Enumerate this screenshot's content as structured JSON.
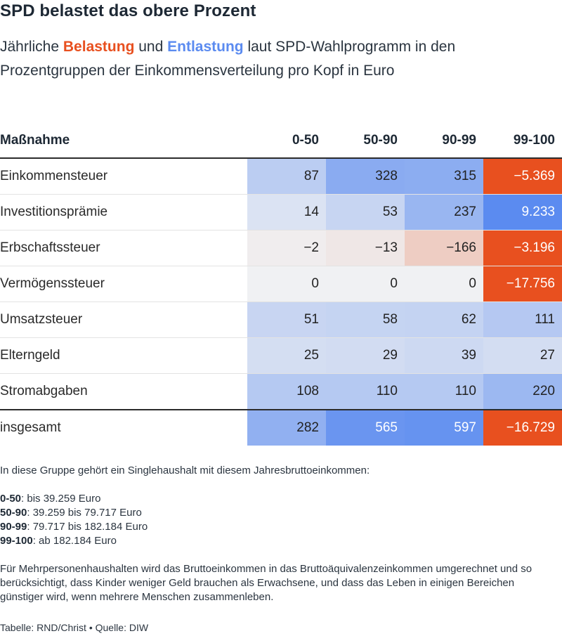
{
  "title": "SPD belastet das obere Prozent",
  "subtitle": {
    "pre": "Jährliche ",
    "belastung": "Belastung",
    "mid": " und ",
    "entlastung": "Entlastung",
    "post": " laut SPD-Wahlprogramm in den Prozentgruppen der Einkommensverteilung pro Kopf in Euro"
  },
  "colors": {
    "belastung": "#e8501f",
    "entlastung": "#5b8bf0"
  },
  "chart_data": {
    "type": "table",
    "title": "SPD belastet das obere Prozent",
    "columns": [
      "Maßnahme",
      "0-50",
      "50-90",
      "90-99",
      "99-100"
    ],
    "rows": [
      {
        "label": "Einkommensteuer",
        "values": [
          87,
          328,
          315,
          -5369
        ],
        "display": [
          "87",
          "328",
          "315",
          "−5.369"
        ]
      },
      {
        "label": "Investitionsprämie",
        "values": [
          14,
          53,
          237,
          9233
        ],
        "display": [
          "14",
          "53",
          "237",
          "9.233"
        ]
      },
      {
        "label": "Erbschaftssteuer",
        "values": [
          -2,
          -13,
          -166,
          -3196
        ],
        "display": [
          "−2",
          "−13",
          "−166",
          "−3.196"
        ]
      },
      {
        "label": "Vermögenssteuer",
        "values": [
          0,
          0,
          0,
          -17756
        ],
        "display": [
          "0",
          "0",
          "0",
          "−17.756"
        ]
      },
      {
        "label": "Umsatzsteuer",
        "values": [
          51,
          58,
          62,
          111
        ],
        "display": [
          "51",
          "58",
          "62",
          "111"
        ]
      },
      {
        "label": "Elterngeld",
        "values": [
          25,
          29,
          39,
          27
        ],
        "display": [
          "25",
          "29",
          "39",
          "27"
        ]
      },
      {
        "label": "Stromabgaben",
        "values": [
          108,
          110,
          110,
          220
        ],
        "display": [
          "108",
          "110",
          "110",
          "220"
        ]
      }
    ],
    "total": {
      "label": "insgesamt",
      "values": [
        282,
        565,
        597,
        -16729
      ],
      "display": [
        "282",
        "565",
        "597",
        "−16.729"
      ]
    }
  },
  "note": {
    "intro": "In diese Gruppe gehört ein Singlehaushalt mit diesem Jahresbruttoeinkommen:",
    "groups": [
      {
        "key": "0-50",
        "text": ": bis 39.259 Euro"
      },
      {
        "key": "50-90",
        "text": ": 39.259 bis 79.717 Euro"
      },
      {
        "key": "90-99",
        "text": ": 79.717 bis 182.184 Euro"
      },
      {
        "key": "99-100",
        "text": ": ab 182.184 Euro"
      }
    ],
    "explanation": "Für Mehrpersonenhaushalten wird das Bruttoeinkommen in das Bruttoäquivalenzeinkommen umgerechnet und so berücksichtigt, dass Kinder weniger Geld brauchen als Erwachsene, und dass das Leben in einigen Bereichen günstiger wird, wenn mehrere Menschen zusammenleben."
  },
  "source": "Tabelle: RND/Christ • Quelle: DIW"
}
